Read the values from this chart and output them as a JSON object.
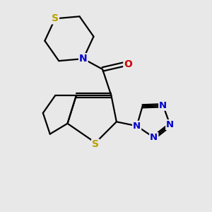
{
  "background_color": "#e8e8e8",
  "bond_color": "#000000",
  "S_color": "#b8a000",
  "N_color": "#0000cc",
  "O_color": "#cc0000",
  "line_width": 1.6,
  "fig_width": 3.0,
  "fig_height": 3.0,
  "dpi": 100,
  "xlim": [
    0.0,
    6.0
  ],
  "ylim": [
    0.5,
    6.0
  ]
}
